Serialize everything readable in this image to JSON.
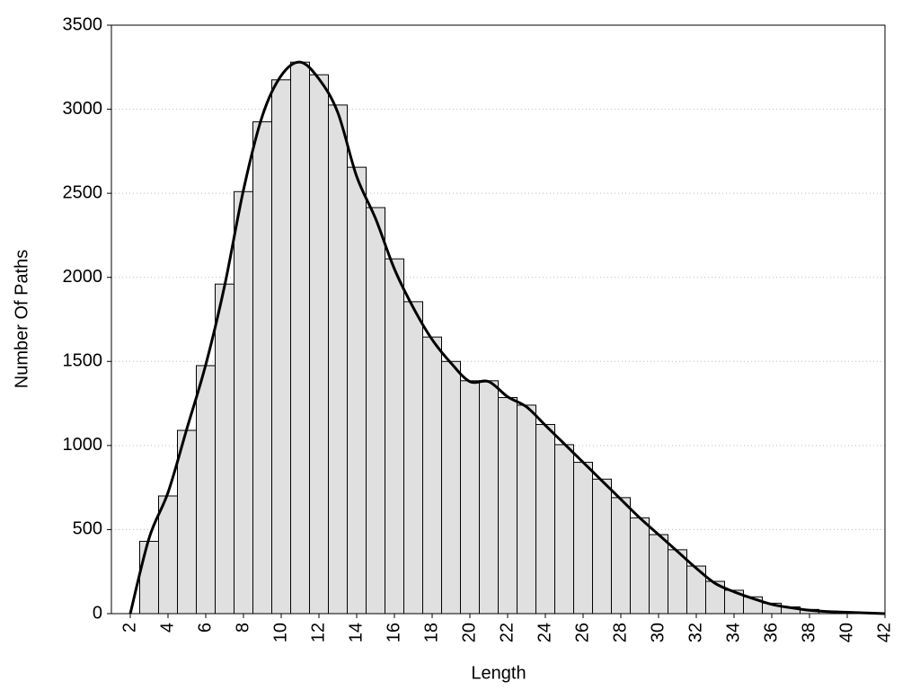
{
  "chart_data": {
    "type": "histogram",
    "xlabel": "Length",
    "ylabel": "Number Of Paths",
    "bins": [
      2.5,
      3.5,
      4.5,
      5.5,
      6.5,
      7.5,
      8.5,
      9.5,
      10.5,
      11.5,
      12.5,
      13.5,
      14.5,
      15.5,
      16.5,
      17.5,
      18.5,
      19.5,
      20.5,
      21.5,
      22.5,
      23.5,
      24.5,
      25.5,
      26.5,
      27.5,
      28.5,
      29.5,
      30.5,
      31.5,
      32.5,
      33.5,
      34.5,
      35.5,
      36.5,
      37.5,
      38.5,
      39.5,
      40.5,
      41.5
    ],
    "counts": [
      430,
      700,
      1090,
      1475,
      1960,
      2510,
      2925,
      3175,
      3280,
      3205,
      3025,
      2655,
      2415,
      2110,
      1855,
      1645,
      1500,
      1385,
      1385,
      1285,
      1240,
      1125,
      1005,
      900,
      800,
      690,
      570,
      470,
      380,
      283,
      192,
      139,
      100,
      62,
      40,
      25,
      15,
      10,
      5
    ],
    "color": "#e0e0e0",
    "curve": {
      "x": [
        2,
        3,
        4,
        5,
        6,
        7,
        8,
        9,
        10,
        11,
        12,
        13,
        14,
        15,
        16,
        17,
        18,
        19,
        20,
        21,
        22,
        23,
        24,
        25,
        26,
        27,
        28,
        29,
        30,
        31,
        32,
        33,
        34,
        35,
        36,
        37,
        38,
        39,
        40,
        41,
        42
      ],
      "values": [
        0,
        450,
        720,
        1100,
        1480,
        1950,
        2520,
        2960,
        3200,
        3280,
        3180,
        2980,
        2600,
        2350,
        2050,
        1820,
        1630,
        1490,
        1380,
        1380,
        1290,
        1230,
        1120,
        1010,
        900,
        790,
        680,
        570,
        470,
        370,
        270,
        180,
        130,
        90,
        55,
        35,
        20,
        12,
        8,
        4,
        0
      ],
      "color": "#000000"
    },
    "xlim": [
      1,
      42
    ],
    "ylim": [
      0,
      3500
    ],
    "xticks": [
      2,
      4,
      6,
      8,
      10,
      12,
      14,
      16,
      18,
      20,
      22,
      24,
      26,
      28,
      30,
      32,
      34,
      36,
      38,
      40,
      42
    ],
    "yticks": [
      0,
      500,
      1000,
      1500,
      2000,
      2500,
      3000,
      3500
    ],
    "grid": true
  }
}
